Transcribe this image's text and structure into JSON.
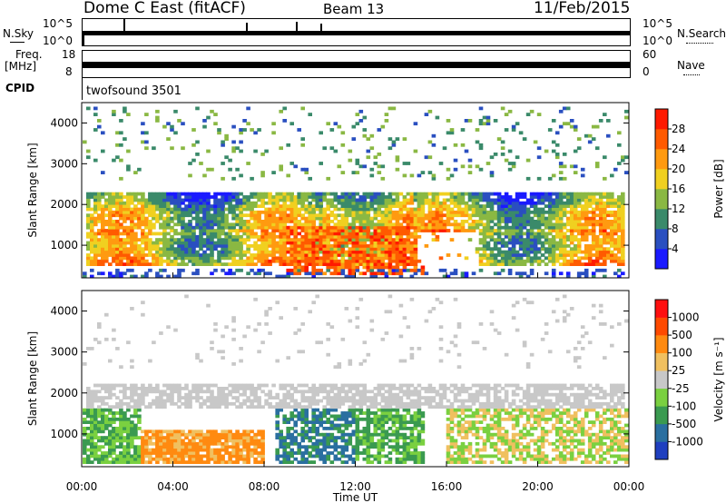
{
  "header": {
    "station": "Dome C East (fitACF)",
    "beam": "Beam 13",
    "date": "11/Feb/2015"
  },
  "noise_panel": {
    "left_label": "N.Sky",
    "left_ticks": [
      "10^5",
      "10^0"
    ],
    "right_label": "N.Search",
    "right_ticks": [
      "10^5",
      "10^0"
    ]
  },
  "freq_panel": {
    "left_label": "Freq.",
    "left_unit": "[MHz]",
    "left_ticks": [
      "18",
      "8"
    ],
    "right_label": "Nave",
    "right_ticks": [
      "60",
      "0"
    ]
  },
  "cpid_panel": {
    "label": "CPID",
    "value": "twofsound 3501"
  },
  "chart_data": [
    {
      "type": "heatmap",
      "parameter": "Power",
      "ylabel": "Slant Range [km]",
      "xlabel": "Time UT",
      "ylim": [
        200,
        4500
      ],
      "yticks": [
        "1000",
        "2000",
        "3000",
        "4000"
      ],
      "xticks": [
        "00:00",
        "04:00",
        "08:00",
        "12:00",
        "16:00",
        "20:00",
        "00:00"
      ],
      "colorbar": {
        "label": "Power [dB]",
        "ticks": [
          "4",
          "8",
          "12",
          "16",
          "20",
          "24",
          "28"
        ],
        "colors": [
          "#1a1aff",
          "#2a4fc0",
          "#3a8a6a",
          "#8ab843",
          "#f0d020",
          "#ff9a10",
          "#ff5a00",
          "#ff1a00"
        ]
      }
    },
    {
      "type": "heatmap",
      "parameter": "Velocity",
      "ylabel": "Slant Range [km]",
      "xlabel": "Time UT",
      "ylim": [
        200,
        4500
      ],
      "yticks": [
        "1000",
        "2000",
        "3000",
        "4000"
      ],
      "xticks": [
        "00:00",
        "04:00",
        "08:00",
        "12:00",
        "16:00",
        "20:00",
        "00:00"
      ],
      "colorbar": {
        "label": "Velocity [m s⁻¹]",
        "ticks": [
          "1000",
          "500",
          "100",
          "25",
          "-25",
          "-100",
          "-500",
          "-1000"
        ],
        "colors": [
          "#1f3fbf",
          "#2a6fa0",
          "#3a9a50",
          "#7ad040",
          "#c8c8c8",
          "#f0c060",
          "#ff8a10",
          "#ff4a00",
          "#ff1010"
        ]
      }
    }
  ]
}
